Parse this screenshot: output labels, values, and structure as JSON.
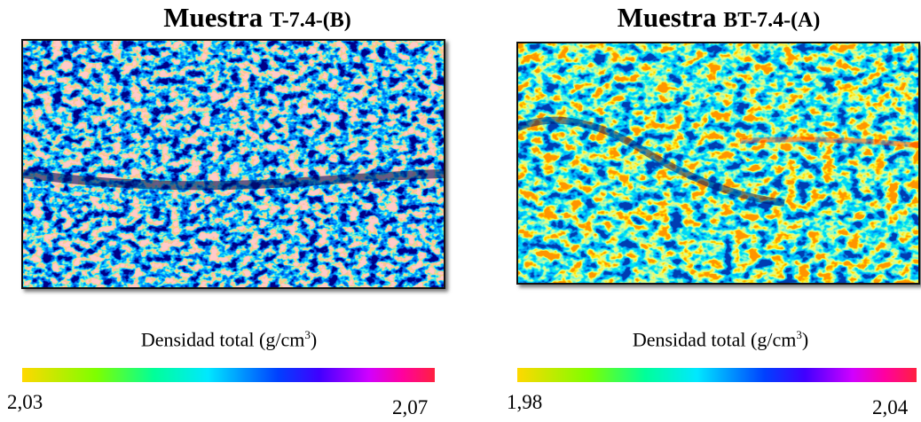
{
  "panels": [
    {
      "title_main": "Muestra",
      "title_code": "T-7.4-(B)",
      "colorbar_label": "Densidad total (g/cm",
      "colorbar_exponent": "3",
      "colorbar_label_end": ")",
      "colorbar_min": "2,03",
      "colorbar_max": "2,07"
    },
    {
      "title_main": "Muestra",
      "title_code": "BT-7.4-(A)",
      "colorbar_label": "Densidad total (g/cm",
      "colorbar_exponent": "3",
      "colorbar_label_end": ")",
      "colorbar_min": "1,98",
      "colorbar_max": "2,04"
    }
  ]
}
